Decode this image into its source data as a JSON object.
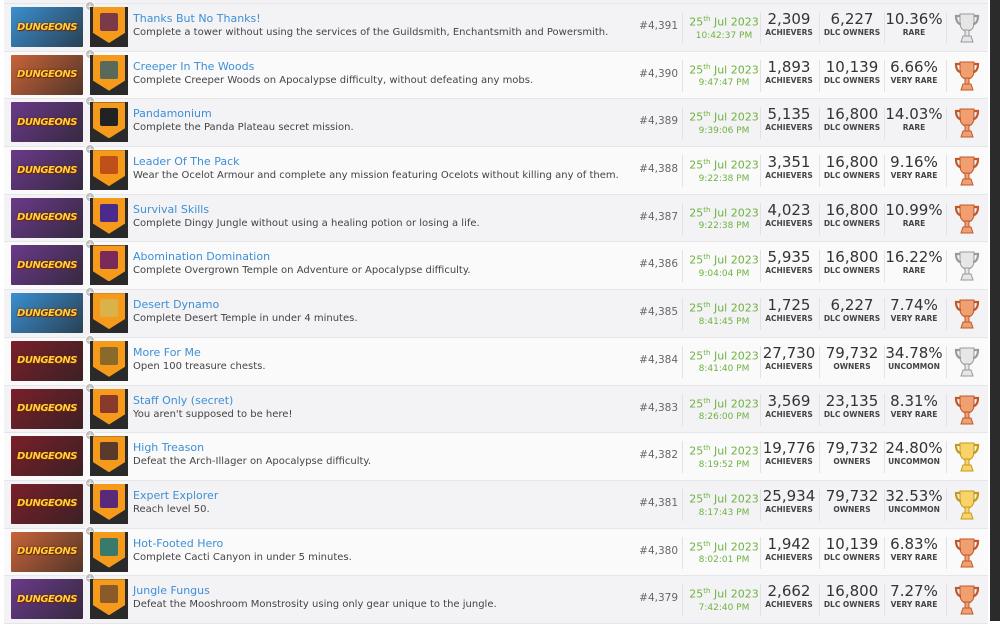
{
  "game_logo_text": "DUNGEONS",
  "rows": [
    {
      "title": "Thanks But No Thanks!",
      "desc": "Complete a tower without using the services of the Guildsmith, Enchantsmith and Powersmith.",
      "rank": "#4,391",
      "day": "25",
      "suffix": "th",
      "date": "Jul 2023",
      "time": "10:42:37 PM",
      "achievers": "2,309",
      "achievers_label": "ACHIEVERS",
      "owners": "6,227",
      "owners_label": "DLC OWNERS",
      "pct": "10.36%",
      "rarity": "RARE",
      "trophy": "silver",
      "thumb": "#3a8fd0"
    },
    {
      "title": "Creeper In The Woods",
      "desc": "Complete Creeper Woods on Apocalypse difficulty, without defeating any mobs.",
      "rank": "#4,390",
      "day": "25",
      "suffix": "th",
      "date": "Jul 2023",
      "time": "9:47:47 PM",
      "achievers": "1,893",
      "achievers_label": "ACHIEVERS",
      "owners": "10,139",
      "owners_label": "DLC OWNERS",
      "pct": "6.66%",
      "rarity": "VERY RARE",
      "trophy": "bronze",
      "thumb": "#c8643a"
    },
    {
      "title": "Pandamonium",
      "desc": "Complete the Panda Plateau secret mission.",
      "rank": "#4,389",
      "day": "25",
      "suffix": "th",
      "date": "Jul 2023",
      "time": "9:39:06 PM",
      "achievers": "5,135",
      "achievers_label": "ACHIEVERS",
      "owners": "16,800",
      "owners_label": "DLC OWNERS",
      "pct": "14.03%",
      "rarity": "RARE",
      "trophy": "bronze",
      "thumb": "#6a3a8a"
    },
    {
      "title": "Leader Of The Pack",
      "desc": "Wear the Ocelot Armour and complete any mission featuring Ocelots without killing any of them.",
      "rank": "#4,388",
      "day": "25",
      "suffix": "th",
      "date": "Jul 2023",
      "time": "9:22:38 PM",
      "achievers": "3,351",
      "achievers_label": "ACHIEVERS",
      "owners": "16,800",
      "owners_label": "DLC OWNERS",
      "pct": "9.16%",
      "rarity": "VERY RARE",
      "trophy": "bronze",
      "thumb": "#6a3a8a"
    },
    {
      "title": "Survival Skills",
      "desc": "Complete Dingy Jungle without using a healing potion or losing a life.",
      "rank": "#4,387",
      "day": "25",
      "suffix": "th",
      "date": "Jul 2023",
      "time": "9:22:38 PM",
      "achievers": "4,023",
      "achievers_label": "ACHIEVERS",
      "owners": "16,800",
      "owners_label": "DLC OWNERS",
      "pct": "10.99%",
      "rarity": "RARE",
      "trophy": "bronze",
      "thumb": "#6a3a8a"
    },
    {
      "title": "Abomination Domination",
      "desc": "Complete Overgrown Temple on Adventure or Apocalypse difficulty.",
      "rank": "#4,386",
      "day": "25",
      "suffix": "th",
      "date": "Jul 2023",
      "time": "9:04:04 PM",
      "achievers": "5,935",
      "achievers_label": "ACHIEVERS",
      "owners": "16,800",
      "owners_label": "DLC OWNERS",
      "pct": "16.22%",
      "rarity": "RARE",
      "trophy": "silver",
      "thumb": "#6a3a8a"
    },
    {
      "title": "Desert Dynamo",
      "desc": "Complete Desert Temple in under 4 minutes.",
      "rank": "#4,385",
      "day": "25",
      "suffix": "th",
      "date": "Jul 2023",
      "time": "8:41:45 PM",
      "achievers": "1,725",
      "achievers_label": "ACHIEVERS",
      "owners": "6,227",
      "owners_label": "DLC OWNERS",
      "pct": "7.74%",
      "rarity": "VERY RARE",
      "trophy": "bronze",
      "thumb": "#3a8fd0"
    },
    {
      "title": "More For Me",
      "desc": "Open 100 treasure chests.",
      "rank": "#4,384",
      "day": "25",
      "suffix": "th",
      "date": "Jul 2023",
      "time": "8:41:40 PM",
      "achievers": "27,730",
      "achievers_label": "ACHIEVERS",
      "owners": "79,732",
      "owners_label": "OWNERS",
      "pct": "34.78%",
      "rarity": "UNCOMMON",
      "trophy": "silver",
      "thumb": "#7a1f2a"
    },
    {
      "title": "Staff Only (secret)",
      "desc": "You aren't supposed to be here!",
      "rank": "#4,383",
      "day": "25",
      "suffix": "th",
      "date": "Jul 2023",
      "time": "8:26:00 PM",
      "achievers": "3,569",
      "achievers_label": "ACHIEVERS",
      "owners": "23,135",
      "owners_label": "DLC OWNERS",
      "pct": "8.31%",
      "rarity": "VERY RARE",
      "trophy": "bronze",
      "thumb": "#7a1f2a"
    },
    {
      "title": "High Treason",
      "desc": "Defeat the Arch-Illager on Apocalypse difficulty.",
      "rank": "#4,382",
      "day": "25",
      "suffix": "th",
      "date": "Jul 2023",
      "time": "8:19:52 PM",
      "achievers": "19,776",
      "achievers_label": "ACHIEVERS",
      "owners": "79,732",
      "owners_label": "OWNERS",
      "pct": "24.80%",
      "rarity": "UNCOMMON",
      "trophy": "gold",
      "thumb": "#7a1f2a"
    },
    {
      "title": "Expert Explorer",
      "desc": "Reach level 50.",
      "rank": "#4,381",
      "day": "25",
      "suffix": "th",
      "date": "Jul 2023",
      "time": "8:17:43 PM",
      "achievers": "25,934",
      "achievers_label": "ACHIEVERS",
      "owners": "79,732",
      "owners_label": "OWNERS",
      "pct": "32.53%",
      "rarity": "UNCOMMON",
      "trophy": "gold",
      "thumb": "#7a1f2a"
    },
    {
      "title": "Hot-Footed Hero",
      "desc": "Complete Cacti Canyon in under 5 minutes.",
      "rank": "#4,380",
      "day": "25",
      "suffix": "th",
      "date": "Jul 2023",
      "time": "8:02:01 PM",
      "achievers": "1,942",
      "achievers_label": "ACHIEVERS",
      "owners": "10,139",
      "owners_label": "DLC OWNERS",
      "pct": "6.83%",
      "rarity": "VERY RARE",
      "trophy": "bronze",
      "thumb": "#c8643a"
    },
    {
      "title": "Jungle Fungus",
      "desc": "Defeat the Mooshroom Monstrosity using only gear unique to the jungle.",
      "rank": "#4,379",
      "day": "25",
      "suffix": "th",
      "date": "Jul 2023",
      "time": "7:42:40 PM",
      "achievers": "2,662",
      "achievers_label": "ACHIEVERS",
      "owners": "16,800",
      "owners_label": "DLC OWNERS",
      "pct": "7.27%",
      "rarity": "VERY RARE",
      "trophy": "bronze",
      "thumb": "#6a3a8a"
    }
  ],
  "trophy_colors": {
    "gold": [
      "#f7d36a",
      "#c79a1a"
    ],
    "silver": [
      "#e6e6e6",
      "#9a9a9a"
    ],
    "bronze": [
      "#f0a070",
      "#c0582a"
    ]
  },
  "icon_colors": [
    "#7a3a4a",
    "#5a6a5a",
    "#222",
    "#c0501a",
    "#4a2a8a",
    "#7a2a5a",
    "#d9b24a",
    "#8a6a2a",
    "#8a3a2a",
    "#5a3a2a",
    "#5a2a7a",
    "#3a7a6a",
    "#8a5a2a"
  ]
}
